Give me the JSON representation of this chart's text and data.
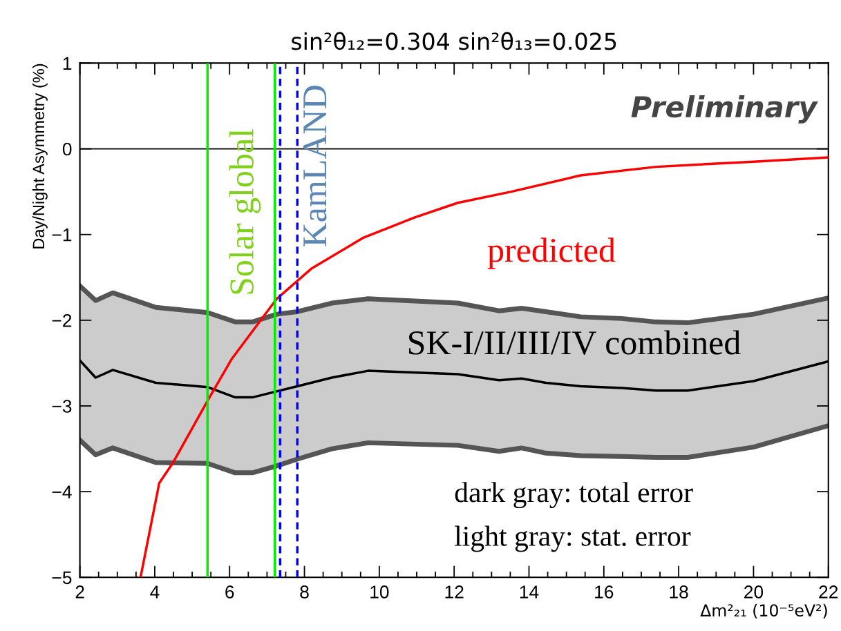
{
  "chart_data": {
    "type": "line",
    "title": "sin²θ₁₂=0.304 sin²θ₁₃=0.025",
    "xlabel": "Δm²₂₁ (10⁻⁵eV²)",
    "ylabel": "Day/Night Asymmetry (%)",
    "x": [
      2,
      2.42,
      2.88,
      4.03,
      5.41,
      6.15,
      6.61,
      7.26,
      7.81,
      8.73,
      9.7,
      12.1,
      13.2,
      13.8,
      14.45,
      15.38,
      16.48,
      17.4,
      18.24,
      20,
      22
    ],
    "series": [
      {
        "color": "#555555",
        "values": [
          -1.6,
          -1.77,
          -1.68,
          -1.85,
          -1.91,
          -2.02,
          -2.02,
          -1.93,
          -1.9,
          -1.8,
          -1.75,
          -1.8,
          -1.89,
          -1.86,
          -1.9,
          -1.96,
          -1.98,
          -2.02,
          -2.03,
          -1.93,
          -1.74
        ]
      },
      {
        "color": "#555555",
        "values": [
          -3.4,
          -3.57,
          -3.49,
          -3.66,
          -3.67,
          -3.78,
          -3.78,
          -3.7,
          -3.62,
          -3.5,
          -3.43,
          -3.46,
          -3.53,
          -3.49,
          -3.55,
          -3.58,
          -3.59,
          -3.6,
          -3.6,
          -3.48,
          -3.23
        ]
      },
      {
        "color": "#000000",
        "values": [
          -2.47,
          -2.67,
          -2.58,
          -2.73,
          -2.78,
          -2.9,
          -2.9,
          -2.83,
          -2.77,
          -2.67,
          -2.59,
          -2.63,
          -2.7,
          -2.68,
          -2.73,
          -2.77,
          -2.79,
          -2.82,
          -2.82,
          -2.71,
          -2.48
        ],
        "lower": [
          -3.4,
          -3.57,
          -3.49,
          -3.66,
          -3.67,
          -3.78,
          -3.78,
          -3.7,
          -3.62,
          -3.5,
          -3.43,
          -3.46,
          -3.53,
          -3.49,
          -3.55,
          -3.58,
          -3.59,
          -3.6,
          -3.6,
          -3.48,
          -3.23
        ],
        "upper": [
          -1.6,
          -1.77,
          -1.68,
          -1.85,
          -1.91,
          -2.02,
          -2.02,
          -1.93,
          -1.9,
          -1.8,
          -1.75,
          -1.8,
          -1.89,
          -1.86,
          -1.9,
          -1.96,
          -1.98,
          -2.02,
          -2.03,
          -1.93,
          -1.74
        ]
      },
      {
        "color": "#ff0000",
        "x": [
          3.62,
          4.12,
          4.49,
          5.41,
          6.06,
          7.26,
          8.18,
          9.56,
          10.95,
          12.1,
          13.53,
          15.38,
          17.4,
          20,
          22
        ],
        "values": [
          -5,
          -3.9,
          -3.66,
          -2.94,
          -2.45,
          -1.75,
          -1.4,
          -1.04,
          -0.8,
          -0.63,
          -0.5,
          -0.31,
          -0.21,
          -0.15,
          -0.1
        ]
      }
    ],
    "xlim": [
      2,
      22
    ],
    "ylim": [
      -5,
      1
    ],
    "xticks": [
      2,
      4,
      6,
      8,
      10,
      12,
      14,
      16,
      18,
      20,
      22
    ],
    "yticks": [
      {
        "value": -5,
        "label": "−5"
      },
      {
        "value": -4,
        "label": "−4"
      },
      {
        "value": -3,
        "label": "−3"
      },
      {
        "value": -2,
        "label": "−2"
      },
      {
        "value": -1,
        "label": "−1"
      },
      0,
      1
    ],
    "ref_lines": [
      {
        "axis": "y",
        "value": 0,
        "color": "#000000"
      },
      {
        "axis": "x",
        "value": 5.41,
        "color": "#00ee00",
        "line_style": "solid",
        "label": "Solar global"
      },
      {
        "axis": "x",
        "value": 7.21,
        "color": "#00ee00",
        "line_style": "solid"
      },
      {
        "axis": "x",
        "value": 7.35,
        "color": "#0000ff",
        "line_style": "dashed"
      },
      {
        "axis": "x",
        "value": 7.81,
        "color": "#0000ff",
        "line_style": "dashed",
        "label": "KamLAND"
      }
    ],
    "annotations": [
      "Preliminary",
      "predicted",
      "SK-I/II/III/IV combined",
      "dark gray: total error",
      "light gray: stat. error"
    ],
    "legend": false,
    "grid": false,
    "marker": "none",
    "line_style": "solid"
  }
}
